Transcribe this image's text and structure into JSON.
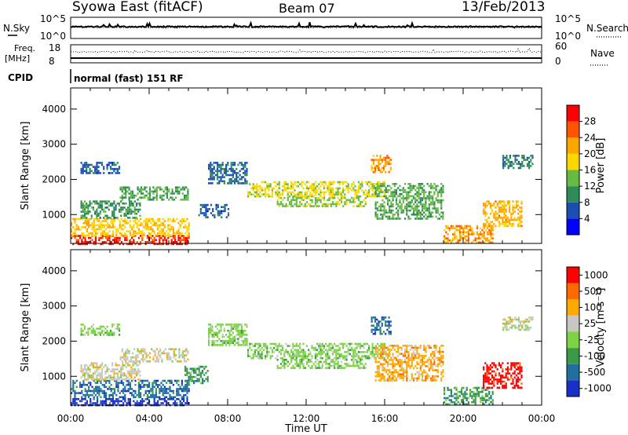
{
  "header": {
    "station": "Syowa East (fitACF)",
    "beam": "Beam 07",
    "date": "13/Feb/2013"
  },
  "top_panels": {
    "nsky_label": "N.Sky",
    "nsky_ticks": [
      "10^5",
      "10^0"
    ],
    "nsearch_label": "N.Search",
    "nsearch_ticks": [
      "10^5",
      "10^0"
    ],
    "freq_label_1": "Freq.",
    "freq_label_2": "[MHz]",
    "freq_ticks": [
      "18",
      "8"
    ],
    "nave_label": "Nave",
    "nave_ticks": [
      "60",
      "0"
    ],
    "cpid_label": "CPID",
    "cpid_text": "normal (fast) 151 RF"
  },
  "colors": {
    "power_scale": [
      "#0000ff",
      "#1a4fb0",
      "#2e8b57",
      "#66bb44",
      "#ffd700",
      "#ffa500",
      "#ff5500",
      "#ff0000"
    ],
    "velocity_scale": [
      "#1a2fc8",
      "#1f6fa0",
      "#3a9a4a",
      "#7cd444",
      "#c8c8c0",
      "#ffaa00",
      "#ff6a00",
      "#ff0000"
    ]
  },
  "chart_data": [
    {
      "type": "heatmap",
      "name": "power",
      "xlabel": "Time UT",
      "ylabel": "Slant Range [km]",
      "x_ticks": [
        "00:00",
        "04:00",
        "08:00",
        "12:00",
        "16:00",
        "20:00",
        "00:00"
      ],
      "y_ticks": [
        "1000",
        "2000",
        "3000",
        "4000"
      ],
      "xlim_hours": [
        0,
        24
      ],
      "ylim_km": [
        180,
        4600
      ],
      "colorbar_label": "Power [dB]",
      "colorbar_ticks": [
        "4",
        "8",
        "12",
        "16",
        "20",
        "24",
        "28"
      ],
      "scale_range": [
        0,
        30
      ],
      "features": [
        {
          "t0": 0.0,
          "t1": 6.0,
          "r0": 180,
          "r1": 420,
          "value": 27
        },
        {
          "t0": 0.0,
          "t1": 6.0,
          "r0": 420,
          "r1": 900,
          "value": 18
        },
        {
          "t0": 0.5,
          "t1": 3.5,
          "r0": 900,
          "r1": 1400,
          "value": 10
        },
        {
          "t0": 0.5,
          "t1": 2.5,
          "r0": 2200,
          "r1": 2500,
          "value": 6
        },
        {
          "t0": 2.5,
          "t1": 6.0,
          "r0": 1450,
          "r1": 1800,
          "value": 11
        },
        {
          "t0": 6.5,
          "t1": 8.0,
          "r0": 900,
          "r1": 1300,
          "value": 6
        },
        {
          "t0": 7.0,
          "t1": 9.0,
          "r0": 1900,
          "r1": 2500,
          "value": 7
        },
        {
          "t0": 9.0,
          "t1": 16.0,
          "r0": 1500,
          "r1": 1950,
          "value": 16
        },
        {
          "t0": 10.5,
          "t1": 15.0,
          "r0": 1250,
          "r1": 1500,
          "value": 14
        },
        {
          "t0": 15.3,
          "t1": 16.3,
          "r0": 2200,
          "r1": 2700,
          "value": 21
        },
        {
          "t0": 15.5,
          "t1": 19.0,
          "r0": 900,
          "r1": 1900,
          "value": 12
        },
        {
          "t0": 19.0,
          "t1": 21.5,
          "r0": 200,
          "r1": 700,
          "value": 21
        },
        {
          "t0": 21.0,
          "t1": 23.0,
          "r0": 700,
          "r1": 1400,
          "value": 20
        },
        {
          "t0": 22.0,
          "t1": 23.5,
          "r0": 2300,
          "r1": 2700,
          "value": 9
        }
      ]
    },
    {
      "type": "heatmap",
      "name": "velocity",
      "xlabel": "Time UT",
      "ylabel": "Slant Range [km]",
      "x_ticks": [
        "00:00",
        "04:00",
        "08:00",
        "12:00",
        "16:00",
        "20:00",
        "00:00"
      ],
      "y_ticks": [
        "1000",
        "2000",
        "3000",
        "4000"
      ],
      "xlim_hours": [
        0,
        24
      ],
      "ylim_km": [
        180,
        4600
      ],
      "colorbar_label": "Velocity [m s⁻¹]",
      "colorbar_ticks": [
        "1000",
        "500",
        "100",
        "25",
        "-25",
        "-100",
        "-500",
        "-1000"
      ],
      "scale_range": [
        0,
        8
      ],
      "features": [
        {
          "t0": 0.0,
          "t1": 6.0,
          "r0": 180,
          "r1": 380,
          "value": 0.5
        },
        {
          "t0": 0.0,
          "t1": 6.0,
          "r0": 380,
          "r1": 900,
          "value": 1.5
        },
        {
          "t0": 0.5,
          "t1": 3.5,
          "r0": 900,
          "r1": 1400,
          "value": 4.5
        },
        {
          "t0": 0.5,
          "t1": 2.5,
          "r0": 2200,
          "r1": 2500,
          "value": 3.5
        },
        {
          "t0": 2.5,
          "t1": 6.0,
          "r0": 1450,
          "r1": 1800,
          "value": 4.5
        },
        {
          "t0": 5.8,
          "t1": 7.0,
          "r0": 800,
          "r1": 1300,
          "value": 2.5
        },
        {
          "t0": 7.0,
          "t1": 9.0,
          "r0": 1900,
          "r1": 2500,
          "value": 3.5
        },
        {
          "t0": 9.0,
          "t1": 16.0,
          "r0": 1500,
          "r1": 1950,
          "value": 3.5
        },
        {
          "t0": 10.5,
          "t1": 15.0,
          "r0": 1250,
          "r1": 1500,
          "value": 3.5
        },
        {
          "t0": 15.3,
          "t1": 16.3,
          "r0": 2200,
          "r1": 2700,
          "value": 1.5
        },
        {
          "t0": 15.5,
          "t1": 19.0,
          "r0": 900,
          "r1": 1900,
          "value": 5.5
        },
        {
          "t0": 19.0,
          "t1": 21.5,
          "r0": 200,
          "r1": 700,
          "value": 2.5
        },
        {
          "t0": 21.0,
          "t1": 23.0,
          "r0": 700,
          "r1": 1400,
          "value": 7.5
        },
        {
          "t0": 22.0,
          "t1": 23.5,
          "r0": 2300,
          "r1": 2700,
          "value": 4.5
        }
      ]
    }
  ]
}
